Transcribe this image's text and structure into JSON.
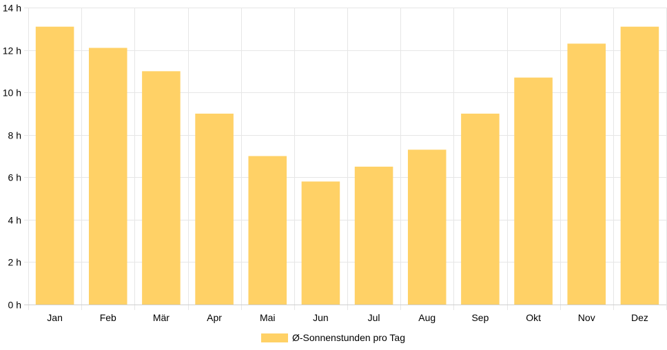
{
  "chart_data": {
    "type": "bar",
    "categories": [
      "Jan",
      "Feb",
      "Mär",
      "Apr",
      "Mai",
      "Jun",
      "Jul",
      "Aug",
      "Sep",
      "Okt",
      "Nov",
      "Dez"
    ],
    "series": [
      {
        "name": "Ø-Sonnenstunden pro Tag",
        "values": [
          13.1,
          12.1,
          11.0,
          9.0,
          7.0,
          5.8,
          6.5,
          7.3,
          9.0,
          10.7,
          12.3,
          13.1
        ]
      }
    ],
    "y_ticks": [
      "0 h",
      "2 h",
      "4 h",
      "6 h",
      "8 h",
      "10 h",
      "12 h",
      "14 h"
    ],
    "ylim": [
      0,
      14
    ],
    "y_step": 2,
    "grid": true,
    "legend_position": "bottom",
    "bar_color": "#ffd166",
    "grid_color": "#e6e6e6"
  }
}
